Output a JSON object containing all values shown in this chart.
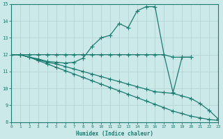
{
  "lines": [
    {
      "x": [
        0,
        1,
        2,
        3,
        4,
        5,
        6,
        7,
        8,
        9,
        10,
        11,
        12,
        13,
        14,
        15,
        16,
        17,
        18,
        19,
        20
      ],
      "y": [
        12.0,
        12.0,
        11.85,
        11.75,
        11.6,
        11.55,
        11.5,
        11.55,
        11.8,
        12.5,
        13.0,
        13.15,
        13.85,
        13.6,
        14.6,
        14.85,
        14.85,
        12.0,
        9.75,
        11.85,
        11.85
      ]
    },
    {
      "x": [
        0,
        1,
        2,
        3,
        4,
        5,
        6,
        7,
        8,
        9,
        10,
        11,
        12,
        13,
        14,
        15,
        16,
        17,
        18,
        19,
        20
      ],
      "y": [
        12.0,
        12.0,
        12.0,
        12.0,
        12.0,
        12.0,
        12.0,
        12.0,
        12.0,
        12.0,
        12.0,
        12.0,
        12.0,
        12.0,
        12.0,
        12.0,
        12.0,
        12.0,
        11.85,
        11.85,
        11.85
      ]
    },
    {
      "x": [
        0,
        1,
        2,
        3,
        4,
        5,
        6,
        7,
        8,
        9,
        10,
        11,
        12,
        13,
        14,
        15,
        16,
        17,
        18,
        19,
        20,
        21,
        22,
        23
      ],
      "y": [
        12.0,
        12.0,
        11.85,
        11.7,
        11.55,
        11.45,
        11.3,
        11.15,
        11.0,
        10.85,
        10.7,
        10.55,
        10.4,
        10.25,
        10.1,
        9.95,
        9.8,
        9.75,
        9.7,
        9.55,
        9.4,
        9.1,
        8.7,
        8.2
      ]
    },
    {
      "x": [
        0,
        1,
        2,
        3,
        4,
        5,
        6,
        7,
        8,
        9,
        10,
        11,
        12,
        13,
        14,
        15,
        16,
        17,
        18,
        19,
        20,
        21,
        22,
        23
      ],
      "y": [
        12.0,
        12.0,
        11.85,
        11.65,
        11.45,
        11.25,
        11.05,
        10.85,
        10.65,
        10.45,
        10.25,
        10.05,
        9.85,
        9.65,
        9.45,
        9.25,
        9.05,
        8.85,
        8.65,
        8.5,
        8.35,
        8.25,
        8.15,
        8.1
      ]
    }
  ],
  "xlim": [
    0,
    23
  ],
  "ylim": [
    8,
    15
  ],
  "yticks": [
    8,
    9,
    10,
    11,
    12,
    13,
    14,
    15
  ],
  "xticks": [
    0,
    1,
    2,
    3,
    4,
    5,
    6,
    7,
    8,
    9,
    10,
    11,
    12,
    13,
    14,
    15,
    16,
    17,
    18,
    19,
    20,
    21,
    22,
    23
  ],
  "xlabel": "Humidex (Indice chaleur)",
  "bg_color": "#cce9e9",
  "grid_color_major": "#b0d0d0",
  "grid_color_minor": "#daeaea",
  "line_color": "#1a7a6e",
  "tick_color": "#1a7a6e",
  "label_color": "#1a7a6e",
  "marker": "+",
  "markersize": 4,
  "linewidth": 0.9
}
